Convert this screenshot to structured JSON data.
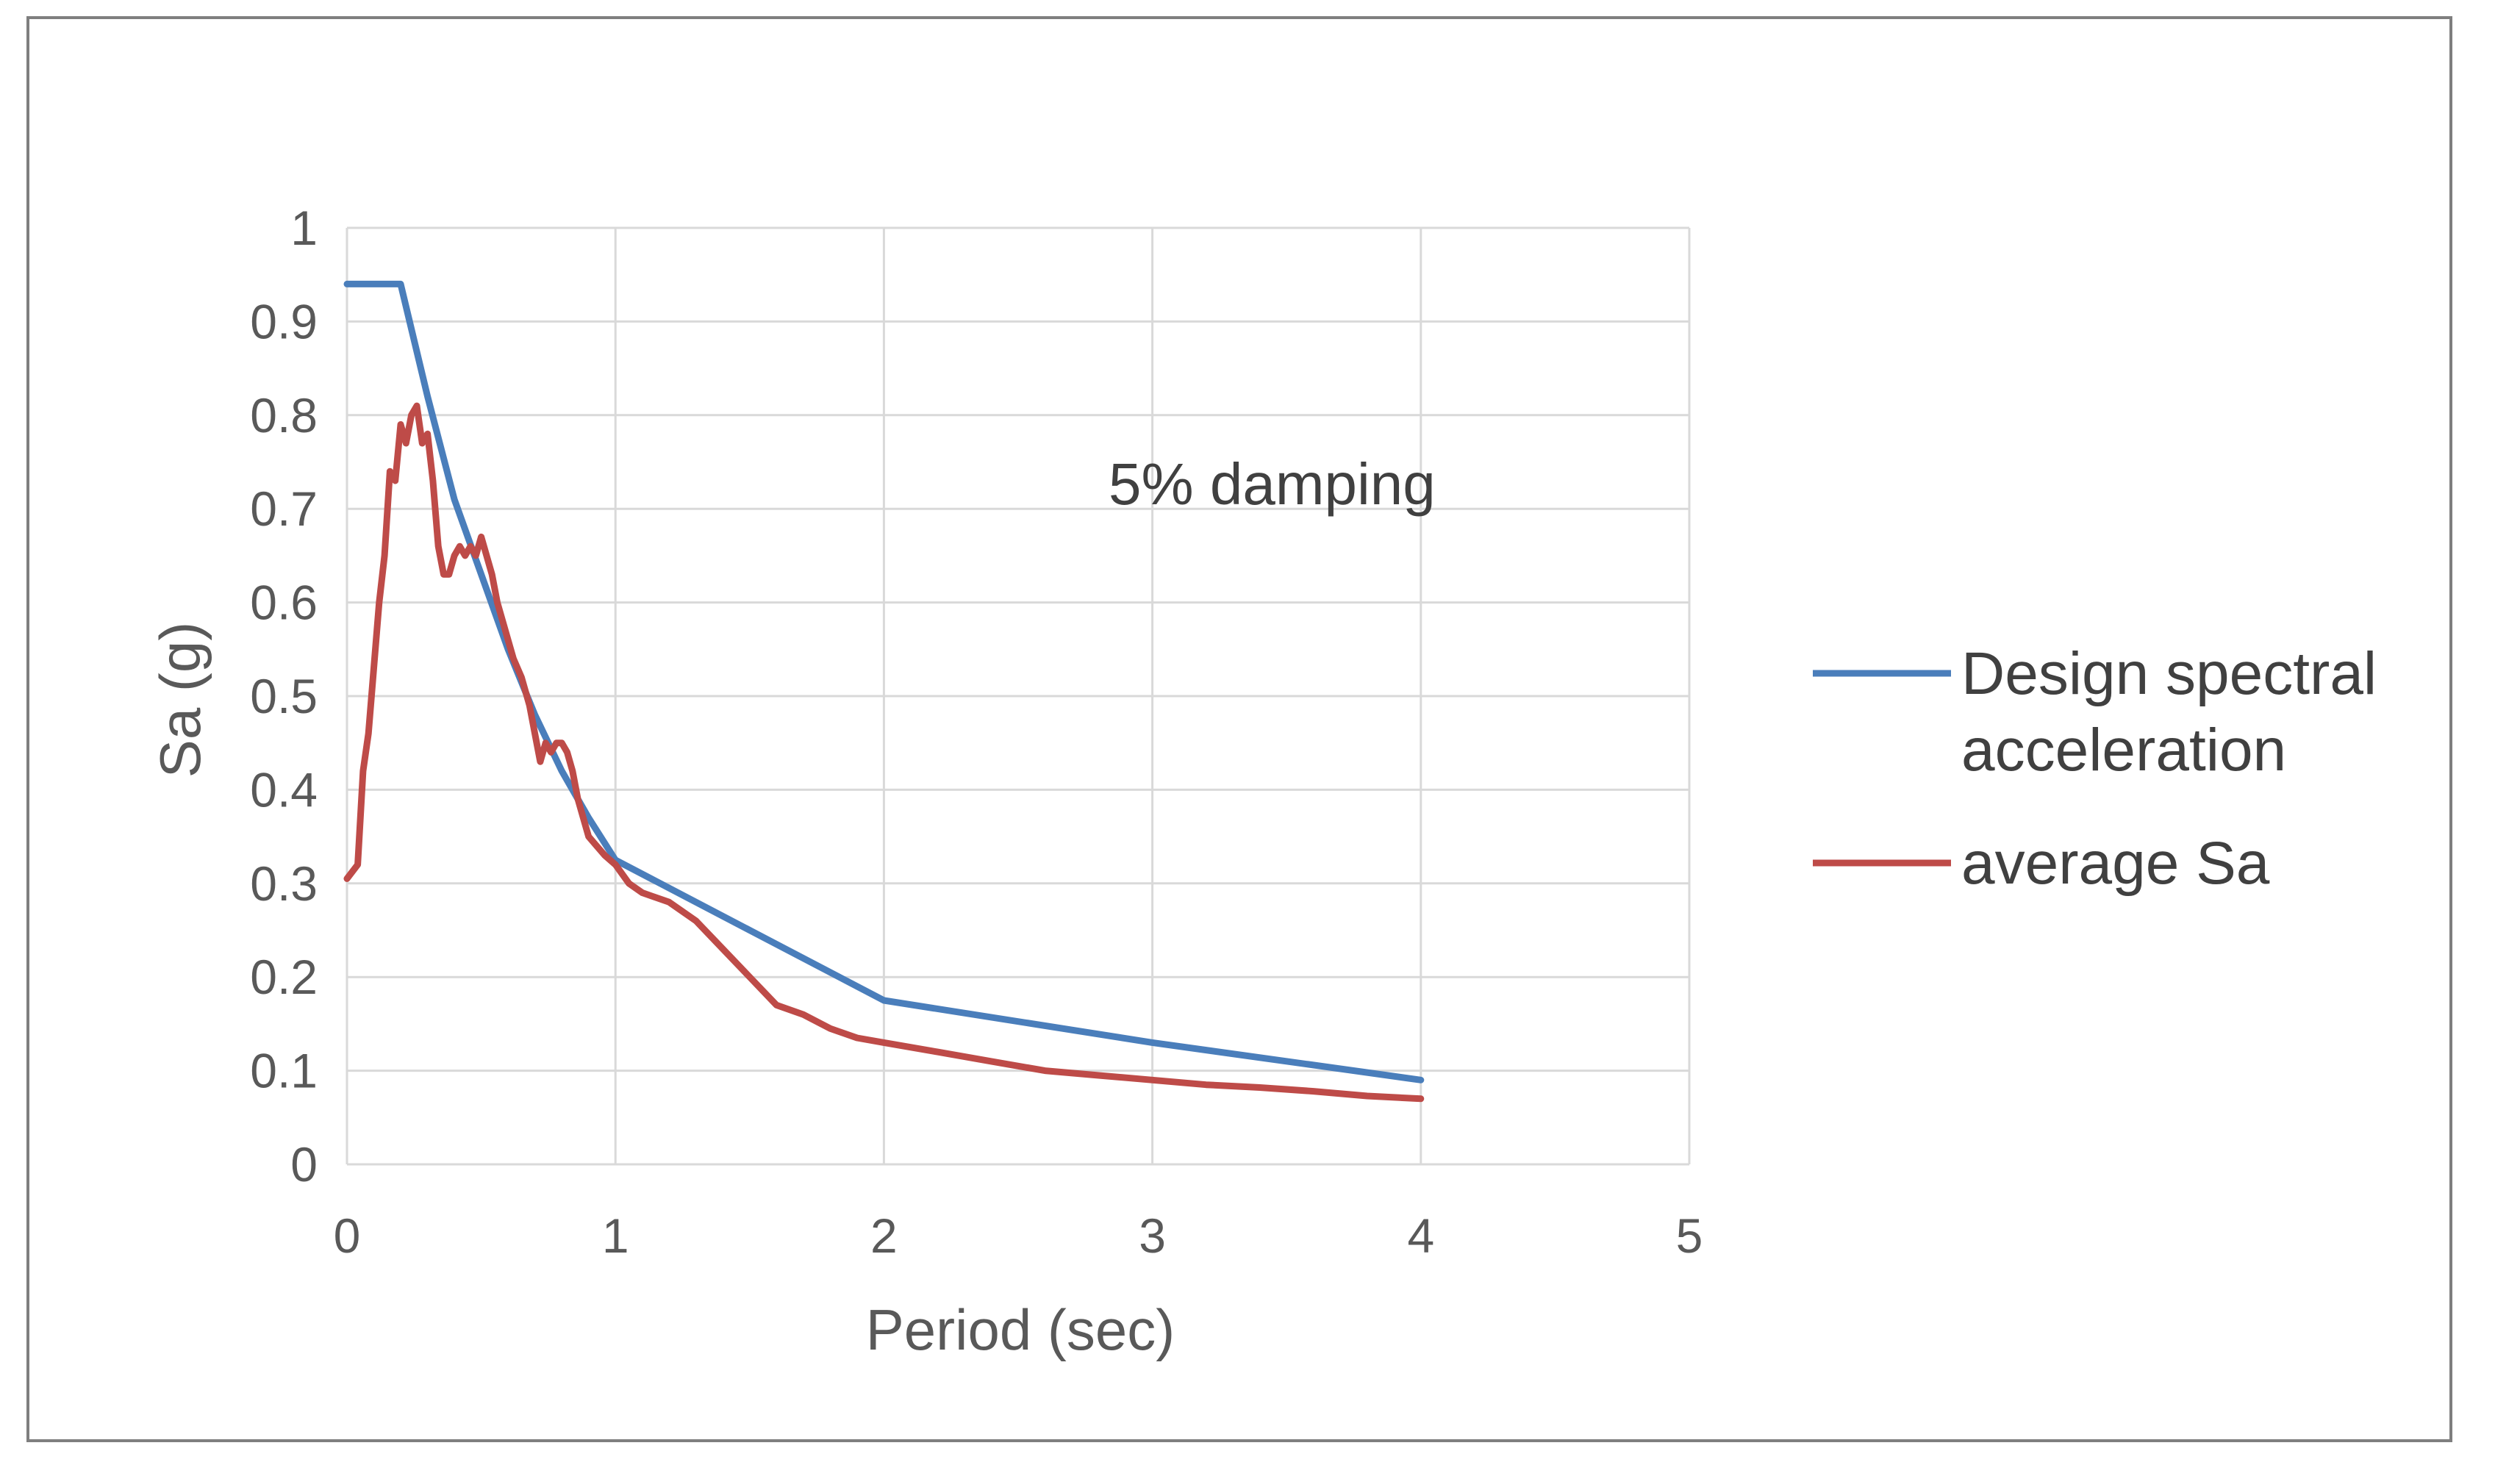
{
  "chart_data": {
    "type": "line",
    "title": "",
    "xlabel": "Period (sec)",
    "ylabel": "Sa (g)",
    "xlim": [
      0,
      5
    ],
    "ylim": [
      0,
      1
    ],
    "xticks": [
      0,
      1,
      2,
      3,
      4,
      5
    ],
    "xtick_labels": [
      "0",
      "1",
      "2",
      "3",
      "4",
      "5"
    ],
    "yticks": [
      0,
      0.1,
      0.2,
      0.3,
      0.4,
      0.5,
      0.6,
      0.7,
      0.8,
      0.9,
      1
    ],
    "ytick_labels": [
      "0",
      "0.1",
      "0.2",
      "0.3",
      "0.4",
      "0.5",
      "0.6",
      "0.7",
      "0.8",
      "0.9",
      "1"
    ],
    "grid": true,
    "annotation": "5% damping",
    "legend_position": "right",
    "colors": {
      "design": "#4a7ebb",
      "average": "#be4b48",
      "grid": "#d9d9d9",
      "frame": "#7f7f7f"
    },
    "series": [
      {
        "name": "Design spectral acceleration",
        "legend_lines": [
          "Design spectral",
          "acceleration"
        ],
        "color": "#4a7ebb",
        "x": [
          0,
          0.2,
          0.3,
          0.4,
          0.5,
          0.6,
          0.7,
          0.8,
          0.9,
          1.0,
          1.5,
          2.0,
          3.0,
          4.0
        ],
        "y": [
          0.94,
          0.94,
          0.82,
          0.71,
          0.63,
          0.55,
          0.48,
          0.42,
          0.37,
          0.325,
          0.25,
          0.175,
          0.13,
          0.09
        ]
      },
      {
        "name": "average Sa",
        "legend_lines": [
          "average Sa"
        ],
        "color": "#be4b48",
        "x": [
          0,
          0.04,
          0.06,
          0.08,
          0.1,
          0.12,
          0.14,
          0.16,
          0.18,
          0.2,
          0.22,
          0.24,
          0.26,
          0.28,
          0.3,
          0.32,
          0.34,
          0.36,
          0.38,
          0.4,
          0.42,
          0.44,
          0.46,
          0.48,
          0.5,
          0.52,
          0.54,
          0.56,
          0.58,
          0.6,
          0.62,
          0.65,
          0.68,
          0.7,
          0.72,
          0.74,
          0.76,
          0.78,
          0.8,
          0.82,
          0.84,
          0.86,
          0.88,
          0.9,
          0.93,
          0.96,
          1.0,
          1.05,
          1.1,
          1.2,
          1.3,
          1.4,
          1.5,
          1.6,
          1.7,
          1.8,
          1.9,
          2.0,
          2.2,
          2.4,
          2.6,
          2.8,
          3.0,
          3.2,
          3.4,
          3.6,
          3.8,
          4.0
        ],
        "y": [
          0.305,
          0.32,
          0.42,
          0.46,
          0.53,
          0.6,
          0.65,
          0.74,
          0.73,
          0.79,
          0.77,
          0.8,
          0.81,
          0.77,
          0.78,
          0.73,
          0.66,
          0.63,
          0.63,
          0.65,
          0.66,
          0.65,
          0.66,
          0.65,
          0.67,
          0.65,
          0.63,
          0.6,
          0.58,
          0.56,
          0.54,
          0.52,
          0.49,
          0.46,
          0.43,
          0.45,
          0.44,
          0.45,
          0.45,
          0.44,
          0.42,
          0.39,
          0.37,
          0.35,
          0.34,
          0.33,
          0.32,
          0.3,
          0.29,
          0.28,
          0.26,
          0.23,
          0.2,
          0.17,
          0.16,
          0.145,
          0.135,
          0.13,
          0.12,
          0.11,
          0.1,
          0.095,
          0.09,
          0.085,
          0.082,
          0.078,
          0.073,
          0.07
        ]
      }
    ]
  }
}
